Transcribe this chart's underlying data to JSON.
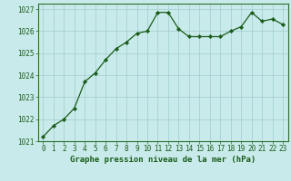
{
  "x": [
    0,
    1,
    2,
    3,
    4,
    5,
    6,
    7,
    8,
    9,
    10,
    11,
    12,
    13,
    14,
    15,
    16,
    17,
    18,
    19,
    20,
    21,
    22,
    23
  ],
  "y": [
    1021.2,
    1021.7,
    1022.0,
    1022.5,
    1023.7,
    1024.1,
    1024.7,
    1025.2,
    1025.5,
    1025.9,
    1026.0,
    1026.85,
    1026.85,
    1026.1,
    1025.75,
    1025.75,
    1025.75,
    1025.75,
    1026.0,
    1026.2,
    1026.85,
    1026.45,
    1026.55,
    1026.3
  ],
  "line_color": "#1a5c1a",
  "marker_color": "#1a5c1a",
  "bg_color": "#c8eaea",
  "grid_color": "#a0cccc",
  "border_color": "#2a6e2a",
  "xlabel": "Graphe pression niveau de la mer (hPa)",
  "xlabel_color": "#1a5c1a",
  "tick_color": "#1a5c1a",
  "ylim": [
    1021.0,
    1027.25
  ],
  "xlim": [
    -0.5,
    23.5
  ],
  "yticks": [
    1021,
    1022,
    1023,
    1024,
    1025,
    1026,
    1027
  ],
  "xticks": [
    0,
    1,
    2,
    3,
    4,
    5,
    6,
    7,
    8,
    9,
    10,
    11,
    12,
    13,
    14,
    15,
    16,
    17,
    18,
    19,
    20,
    21,
    22,
    23
  ],
  "tick_fontsize": 5.5,
  "xlabel_fontsize": 6.5
}
